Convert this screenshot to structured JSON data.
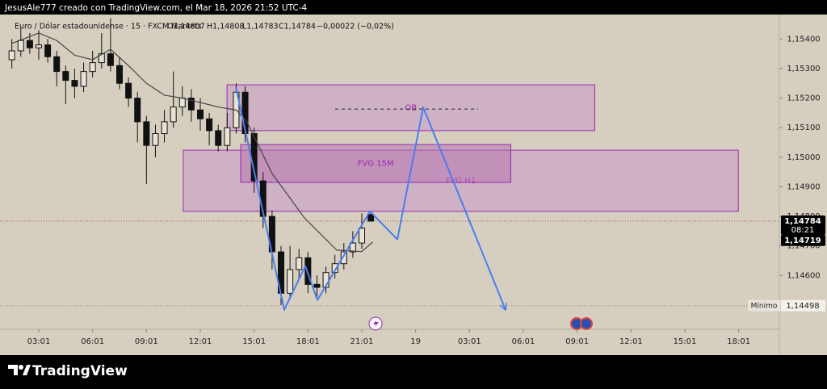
{
  "header": "JesusAle777 creado con TradingView.com, el Mar 18, 2026 21:52 UTC-4",
  "chart_data": {
    "type": "candlestick",
    "symbol": "Euro / Dólar estadounidense · 15 · FXCM Markets",
    "ohlc_labels": [
      "O1,14807",
      "H1,14808",
      "L1,14783",
      "C1,14784",
      "−0,00022 (−0,02%)"
    ],
    "x": [
      1.5,
      2,
      2.5,
      3,
      3.5,
      4,
      4.5,
      5,
      5.5,
      6,
      6.5,
      7,
      7.5,
      8,
      8.5,
      9,
      9.5,
      10,
      10.5,
      11,
      11.5,
      12,
      12.5,
      13,
      13.5,
      14,
      14.5,
      15,
      15.5,
      16,
      16.5,
      17,
      17.5,
      18,
      18.5,
      19,
      19.5,
      20,
      20.5,
      21,
      21.5
    ],
    "open": [
      1.1533,
      1.1536,
      1.15395,
      1.1537,
      1.1538,
      1.1534,
      1.1529,
      1.1526,
      1.1524,
      1.1529,
      1.1532,
      1.1535,
      1.1531,
      1.1525,
      1.152,
      1.1512,
      1.1504,
      1.1508,
      1.1512,
      1.1517,
      1.152,
      1.1516,
      1.1513,
      1.1509,
      1.1504,
      1.151,
      1.1522,
      1.1508,
      1.1492,
      1.148,
      1.1468,
      1.1454,
      1.1462,
      1.1466,
      1.1457,
      1.1456,
      1.1461,
      1.1464,
      1.1468,
      1.1471,
      1.14807
    ],
    "high": [
      1.154,
      1.1544,
      1.1542,
      1.1543,
      1.154,
      1.1536,
      1.1531,
      1.153,
      1.1532,
      1.1536,
      1.1542,
      1.1547,
      1.1534,
      1.1527,
      1.1522,
      1.1514,
      1.1511,
      1.1516,
      1.1529,
      1.1524,
      1.1523,
      1.152,
      1.1515,
      1.1511,
      1.1515,
      1.1525,
      1.1524,
      1.151,
      1.1495,
      1.1482,
      1.147,
      1.147,
      1.1469,
      1.1468,
      1.146,
      1.1463,
      1.1467,
      1.1471,
      1.1475,
      1.1481,
      1.14808
    ],
    "low": [
      1.153,
      1.1534,
      1.1535,
      1.1533,
      1.1532,
      1.1524,
      1.1518,
      1.152,
      1.1522,
      1.1527,
      1.153,
      1.1529,
      1.1523,
      1.1517,
      1.1505,
      1.1491,
      1.15,
      1.1505,
      1.151,
      1.1514,
      1.1512,
      1.1509,
      1.1504,
      1.1502,
      1.1502,
      1.1508,
      1.1505,
      1.1488,
      1.1476,
      1.1462,
      1.145,
      1.1452,
      1.1459,
      1.1454,
      1.1452,
      1.1454,
      1.1459,
      1.1462,
      1.1466,
      1.1469,
      1.14783
    ],
    "close": [
      1.1536,
      1.15395,
      1.1537,
      1.1538,
      1.1534,
      1.1529,
      1.1526,
      1.1524,
      1.1529,
      1.1532,
      1.1535,
      1.1531,
      1.1525,
      1.152,
      1.1512,
      1.1504,
      1.1508,
      1.1512,
      1.1517,
      1.152,
      1.1516,
      1.1513,
      1.1509,
      1.1504,
      1.151,
      1.1522,
      1.1508,
      1.1492,
      1.148,
      1.1468,
      1.1454,
      1.1462,
      1.1466,
      1.1457,
      1.1456,
      1.1461,
      1.1464,
      1.1468,
      1.1471,
      1.1476,
      1.14784
    ],
    "up_color": "#e9e3d6",
    "down_color": "#111111",
    "ma": {
      "x": [
        1.5,
        3,
        4,
        5,
        6,
        7,
        8,
        9,
        10,
        11,
        12,
        13,
        14,
        14.6,
        16,
        17.8,
        19.6,
        21,
        21.6
      ],
      "values": [
        1.15385,
        1.1542,
        1.15395,
        1.15345,
        1.1533,
        1.15365,
        1.1531,
        1.1525,
        1.1521,
        1.152,
        1.15185,
        1.1517,
        1.1516,
        1.1512,
        1.14945,
        1.14795,
        1.14686,
        1.14681,
        1.14713
      ],
      "color": "#444444"
    },
    "zones": [
      {
        "label": "FVG H1",
        "x": [
          11.05,
          41.98
        ],
        "y": [
          1.14817,
          1.15024
        ],
        "color": "#c99bc4"
      },
      {
        "label": "OB",
        "x": [
          13.49,
          33.98
        ],
        "y": [
          1.1509,
          1.15245
        ],
        "color": "#c99bc4",
        "level": {
          "x": [
            19.52,
            27.48
          ],
          "y": 1.15163
        }
      },
      {
        "label": "FVG 15M",
        "x": [
          14.25,
          29.3
        ],
        "y": [
          1.14915,
          1.15043
        ],
        "color": "#b676b0"
      }
    ],
    "projection": {
      "x": [
        13.98,
        16.68,
        17.85,
        18.53,
        21.45,
        22.98,
        24.42,
        29.01
      ],
      "y": [
        1.15237,
        1.14484,
        1.14632,
        1.14517,
        1.14817,
        1.14722,
        1.15169,
        1.14484
      ],
      "color": "#4a7cf0"
    },
    "xlim": [
      1.2,
      42.24
    ],
    "ylim": [
      1.1444,
      1.1551
    ],
    "xticks": [
      {
        "value": 3,
        "label": "03:01"
      },
      {
        "value": 6,
        "label": "06:01"
      },
      {
        "value": 9,
        "label": "09:01"
      },
      {
        "value": 12,
        "label": "12:01"
      },
      {
        "value": 15,
        "label": "15:01"
      },
      {
        "value": 18,
        "label": "18:01"
      },
      {
        "value": 21,
        "label": "21:01"
      },
      {
        "value": 24,
        "label": "19"
      },
      {
        "value": 27,
        "label": "03:01"
      },
      {
        "value": 30,
        "label": "06:01"
      },
      {
        "value": 33,
        "label": "09:01"
      },
      {
        "value": 36,
        "label": "12:01"
      },
      {
        "value": 39,
        "label": "15:01"
      },
      {
        "value": 42,
        "label": "18:01"
      }
    ],
    "yticks": [
      {
        "value": 1.154,
        "label": "1,15400"
      },
      {
        "value": 1.153,
        "label": "1,15300"
      },
      {
        "value": 1.152,
        "label": "1,15200"
      },
      {
        "value": 1.151,
        "label": "1,15100"
      },
      {
        "value": 1.15,
        "label": "1,15000"
      },
      {
        "value": 1.149,
        "label": "1,14900"
      },
      {
        "value": 1.148,
        "label": "1,14800"
      },
      {
        "value": 1.147,
        "label": "1,14700"
      },
      {
        "value": 1.146,
        "label": "1,14600"
      }
    ],
    "price_tags": [
      {
        "value": 1.14784,
        "label": "1,14784",
        "countdown": "08:21"
      },
      {
        "value": 1.14719,
        "label": "1,14719"
      }
    ],
    "low_marker": {
      "name": "Mínimo",
      "value": 1.14498,
      "label": "1,14498"
    }
  },
  "footer": {
    "brand": "TradingView"
  }
}
